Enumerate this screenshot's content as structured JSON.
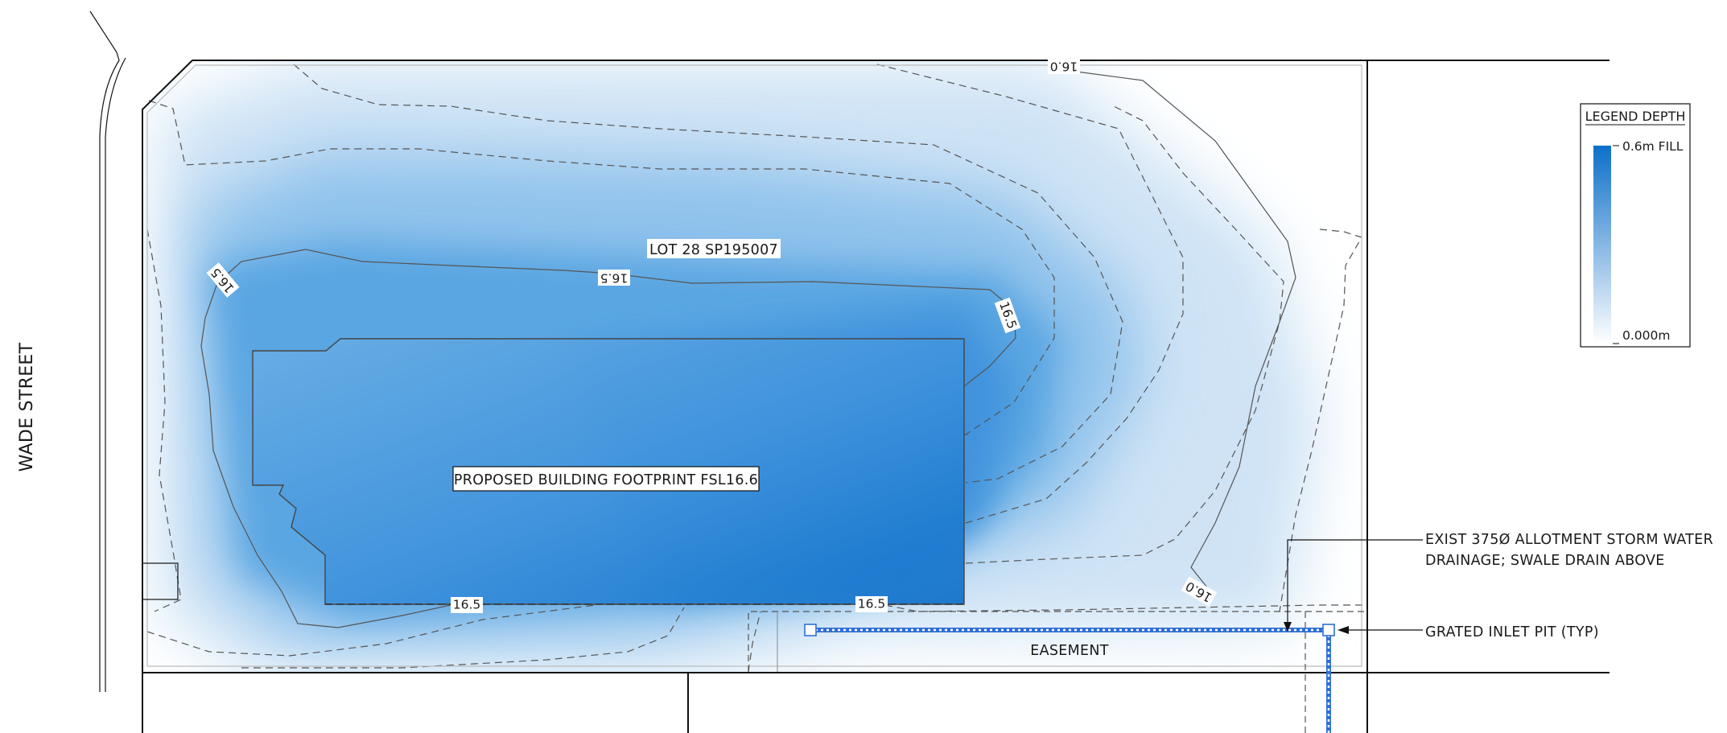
{
  "street": {
    "name": "WADE STREET"
  },
  "lot": {
    "label": "LOT 28 SP195007"
  },
  "building": {
    "label": "PROPOSED BUILDING FOOTPRINT FSL16.6"
  },
  "contours": {
    "labels": [
      "16.0",
      "16.5",
      "16.5",
      "16.5",
      "16.5",
      "16.5",
      "16.0"
    ]
  },
  "easement": {
    "label": "EASEMENT"
  },
  "callouts": {
    "storm_water_line1": "EXIST 375Ø ALLOTMENT STORM WATER",
    "storm_water_line2": "DRAINAGE; SWALE DRAIN ABOVE",
    "grated_inlet": "GRATED INLET PIT (TYP)"
  },
  "legend": {
    "title": "LEGEND DEPTH",
    "max_label": "0.6m FILL",
    "min_label": "0.000m",
    "ramp_colors": [
      "#0d6fc9",
      "#ffffff"
    ]
  },
  "colors": {
    "fill_depth": "#1a76d2",
    "pipe": "#2f6fd6"
  }
}
